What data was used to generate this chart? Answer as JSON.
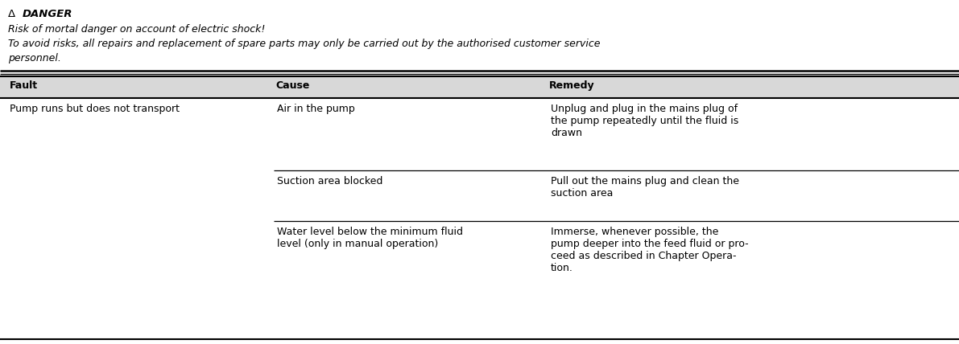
{
  "danger_symbol": "Δ",
  "danger_title": "  DANGER",
  "danger_line1": "Risk of mortal danger on account of electric shock!",
  "danger_line2": "To avoid risks, all repairs and replacement of spare parts may only be carried out by the authorised customer service",
  "danger_line3": "personnel.",
  "col_headers": [
    "Fault",
    "Cause",
    "Remedy"
  ],
  "col_header_bg": "#d8d8d8",
  "rows": [
    {
      "fault": "Pump runs but does not transport",
      "cause": "Air in the pump",
      "remedy": "Unplug and plug in the mains plug of\nthe pump repeatedly until the fluid is\ndrawn"
    },
    {
      "fault": "",
      "cause": "Suction area blocked",
      "remedy": "Pull out the mains plug and clean the\nsuction area"
    },
    {
      "fault": "",
      "cause": "Water level below the minimum fluid\nlevel (only in manual operation)",
      "remedy": "Immerse, whenever possible, the\npump deeper into the feed fluid or pro-\nceed as described in Chapter Opera-\ntion."
    }
  ],
  "bg_color": "#ffffff",
  "text_color": "#000000",
  "font_size": 9.0,
  "header_font_size": 9.0
}
